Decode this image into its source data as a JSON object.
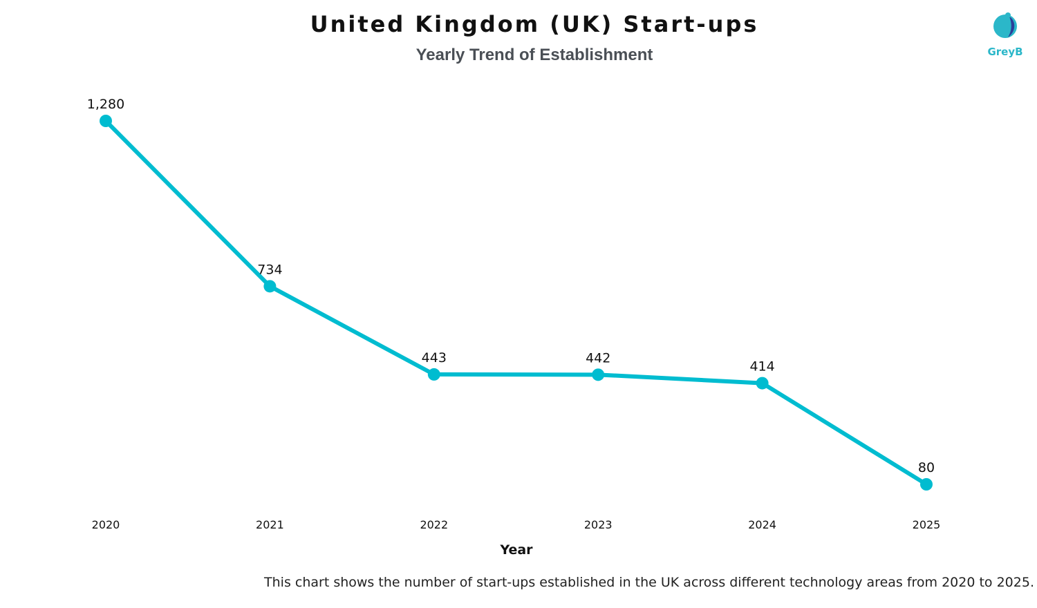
{
  "header": {
    "title": "United Kingdom (UK) Start-ups",
    "subtitle": "Yearly Trend of Establishment"
  },
  "logo": {
    "text": "GreyB",
    "icon": "greyb-logo-icon",
    "colors": {
      "primary": "#2bb7c9",
      "secondary": "#2c3e99"
    }
  },
  "caption": "This chart shows the number of start-ups established in the UK across different technology areas from 2020 to 2025.",
  "chart_data": {
    "type": "line",
    "title": "United Kingdom (UK) Start-ups",
    "subtitle": "Yearly Trend of Establishment",
    "xlabel": "Year",
    "ylabel": "",
    "categories": [
      "2020",
      "2021",
      "2022",
      "2023",
      "2024",
      "2025"
    ],
    "series": [
      {
        "values": [
          1280,
          734,
          443,
          442,
          414,
          80
        ],
        "data_labels": [
          "1,280",
          "734",
          "443",
          "442",
          "414",
          "80"
        ],
        "color": "#00bcd0"
      }
    ],
    "ylim": [
      0,
      1280
    ],
    "grid": false,
    "legend": "none"
  }
}
